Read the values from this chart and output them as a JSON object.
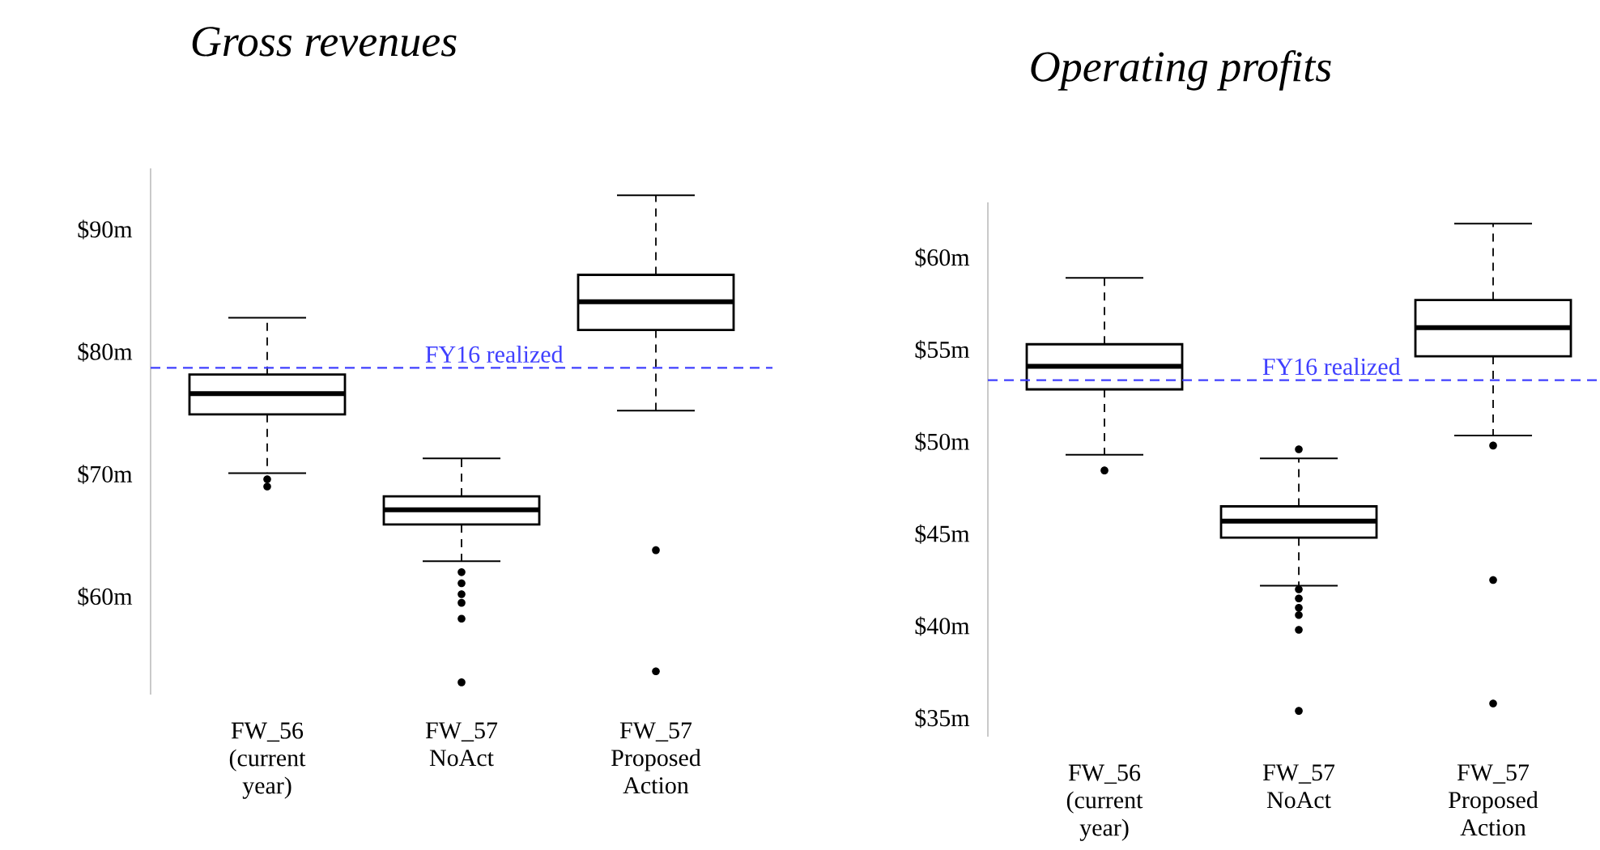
{
  "chart_data": [
    {
      "type": "box",
      "title": "*Gross revenues*",
      "categories": [
        "FW_56 (current year)",
        "FW_57 NoAct",
        "FW_57 Proposed Action"
      ],
      "boxes": [
        {
          "low": 70.1,
          "q1": 74.9,
          "median": 76.6,
          "q3": 78.15,
          "high": 82.8,
          "outliers": [
            69.6,
            69.0
          ]
        },
        {
          "low": 62.9,
          "q1": 65.9,
          "median": 67.1,
          "q3": 68.2,
          "high": 71.3,
          "outliers": [
            62.0,
            61.1,
            60.2,
            59.5,
            58.2,
            53.0
          ]
        },
        {
          "low": 75.2,
          "q1": 81.8,
          "median": 84.1,
          "q3": 86.3,
          "high": 92.8,
          "outliers": [
            63.8,
            53.9
          ]
        }
      ],
      "color": "#000000",
      "ylim": [
        52,
        95
      ],
      "yticks": [
        {
          "value": 60,
          "label": "$60m"
        },
        {
          "value": 70,
          "label": "$70m"
        },
        {
          "value": 80,
          "label": "$80m"
        },
        {
          "value": 90,
          "label": "$90m"
        }
      ],
      "ref_lines": [
        {
          "axis": "y",
          "value": 78.7,
          "label": "FY16 realized",
          "color": "#4040ff",
          "line_style": "dashed"
        }
      ]
    },
    {
      "type": "box",
      "title": "*Operating profits*",
      "categories": [
        "FW_56 (current year)",
        "FW_57 NoAct",
        "FW_57 Proposed Action"
      ],
      "boxes": [
        {
          "low": 49.3,
          "q1": 52.85,
          "median": 54.1,
          "q3": 55.3,
          "high": 58.9,
          "outliers": [
            48.45
          ]
        },
        {
          "low": 42.2,
          "q1": 44.8,
          "median": 45.7,
          "q3": 46.5,
          "high": 49.1,
          "outliers": [
            49.6,
            42.0,
            41.5,
            41.0,
            40.6,
            39.8,
            35.4
          ]
        },
        {
          "low": 50.35,
          "q1": 54.65,
          "median": 56.2,
          "q3": 57.7,
          "high": 61.85,
          "outliers": [
            49.8,
            42.5,
            35.8
          ]
        }
      ],
      "color": "#000000",
      "ylim": [
        34,
        63
      ],
      "yticks": [
        {
          "value": 35,
          "label": "$35m"
        },
        {
          "value": 40,
          "label": "$40m"
        },
        {
          "value": 45,
          "label": "$45m"
        },
        {
          "value": 50,
          "label": "$50m"
        },
        {
          "value": 55,
          "label": "$55m"
        },
        {
          "value": 60,
          "label": "$60m"
        }
      ],
      "ref_lines": [
        {
          "axis": "y",
          "value": 53.35,
          "label": "FY16 realized",
          "color": "#4040ff",
          "line_style": "dashed"
        }
      ]
    }
  ]
}
